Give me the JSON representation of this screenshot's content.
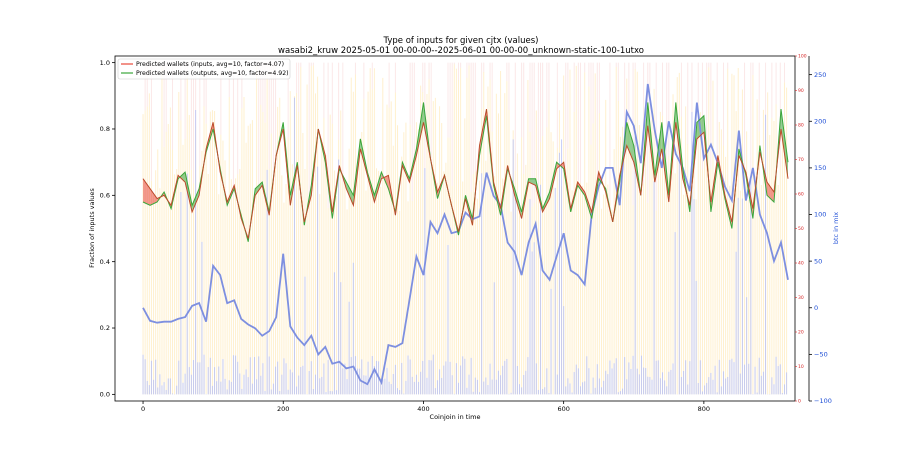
{
  "chart_data": {
    "type": "line",
    "title": "Type of inputs for given cjtx (values)",
    "subtitle": "wasabi2_kruw 2025-05-01 00-00-00--2025-06-01 00-00-00_unknown-static-100-1utxo",
    "xlabel": "Coinjoin in time",
    "ylabel": "Fraction of inputs values",
    "y2label": "btc in mix",
    "xlim": [
      -40,
      930
    ],
    "ylim": [
      -0.02,
      1.02
    ],
    "y_red_lim": [
      0,
      100
    ],
    "y2lim": [
      -100,
      270
    ],
    "x_ticks": [
      0,
      200,
      400,
      600,
      800
    ],
    "x_tick_labels": [
      "0",
      "200",
      "400",
      "600",
      "800"
    ],
    "y_ticks": [
      0.0,
      0.2,
      0.4,
      0.6,
      0.8,
      1.0
    ],
    "y_tick_labels": [
      "0.0",
      "0.2",
      "0.4",
      "0.6",
      "0.8",
      "1.0"
    ],
    "y_red_ticks": [
      0,
      10,
      20,
      30,
      40,
      50,
      60,
      70,
      80,
      90,
      100
    ],
    "y_red_tick_labels": [
      "0",
      "10",
      "20",
      "30",
      "40",
      "50",
      "60",
      "70",
      "80",
      "90",
      "100"
    ],
    "y2_ticks": [
      -100,
      -50,
      0,
      50,
      100,
      150,
      200,
      250
    ],
    "y2_tick_labels": [
      "−100",
      "−50",
      "0",
      "50",
      "100",
      "150",
      "200",
      "250"
    ],
    "legend_placement": "top-left",
    "grid": false,
    "colors": {
      "inputs": "#e8483a",
      "outputs": "#3aa63a",
      "btc": "#7d8fe0",
      "bars_orange": "#ffe3a6",
      "bars_pink": "#f7d2d2",
      "bars_blue": "#b8c0f5"
    },
    "series": [
      {
        "name": "Predicted wallets (inputs, avg=10, factor=4.07)",
        "axis": "fraction",
        "x": [
          0,
          10,
          20,
          30,
          40,
          50,
          60,
          70,
          80,
          90,
          100,
          110,
          120,
          130,
          140,
          150,
          160,
          170,
          180,
          190,
          200,
          210,
          220,
          230,
          240,
          250,
          260,
          270,
          280,
          290,
          300,
          310,
          320,
          330,
          340,
          350,
          360,
          370,
          380,
          390,
          400,
          410,
          420,
          430,
          440,
          450,
          460,
          470,
          480,
          490,
          500,
          510,
          520,
          530,
          540,
          550,
          560,
          570,
          580,
          590,
          600,
          610,
          620,
          630,
          640,
          650,
          660,
          670,
          680,
          690,
          700,
          710,
          720,
          730,
          740,
          750,
          760,
          770,
          780,
          790,
          800,
          810,
          820,
          830,
          840,
          850,
          860,
          870,
          880,
          890,
          900,
          910,
          920
        ],
        "values": [
          0.65,
          0.62,
          0.59,
          0.6,
          0.57,
          0.66,
          0.64,
          0.55,
          0.6,
          0.74,
          0.82,
          0.67,
          0.58,
          0.63,
          0.53,
          0.47,
          0.6,
          0.63,
          0.54,
          0.72,
          0.8,
          0.57,
          0.69,
          0.52,
          0.6,
          0.8,
          0.72,
          0.55,
          0.69,
          0.62,
          0.57,
          0.74,
          0.66,
          0.58,
          0.65,
          0.66,
          0.54,
          0.69,
          0.64,
          0.72,
          0.82,
          0.71,
          0.61,
          0.66,
          0.57,
          0.49,
          0.59,
          0.51,
          0.75,
          0.86,
          0.64,
          0.56,
          0.69,
          0.6,
          0.53,
          0.64,
          0.63,
          0.55,
          0.59,
          0.68,
          0.7,
          0.56,
          0.64,
          0.61,
          0.55,
          0.67,
          0.61,
          0.52,
          0.66,
          0.75,
          0.7,
          0.6,
          0.81,
          0.64,
          0.74,
          0.58,
          0.82,
          0.65,
          0.57,
          0.77,
          0.79,
          0.58,
          0.72,
          0.6,
          0.52,
          0.72,
          0.67,
          0.56,
          0.73,
          0.64,
          0.61,
          0.8,
          0.65
        ]
      },
      {
        "name": "Predicted wallets (outputs, avg=10, factor=4.92)",
        "axis": "fraction",
        "x": [
          0,
          10,
          20,
          30,
          40,
          50,
          60,
          70,
          80,
          90,
          100,
          110,
          120,
          130,
          140,
          150,
          160,
          170,
          180,
          190,
          200,
          210,
          220,
          230,
          240,
          250,
          260,
          270,
          280,
          290,
          300,
          310,
          320,
          330,
          340,
          350,
          360,
          370,
          380,
          390,
          400,
          410,
          420,
          430,
          440,
          450,
          460,
          470,
          480,
          490,
          500,
          510,
          520,
          530,
          540,
          550,
          560,
          570,
          580,
          590,
          600,
          610,
          620,
          630,
          640,
          650,
          660,
          670,
          680,
          690,
          700,
          710,
          720,
          730,
          740,
          750,
          760,
          770,
          780,
          790,
          800,
          810,
          820,
          830,
          840,
          850,
          860,
          870,
          880,
          890,
          900,
          910,
          920
        ],
        "values": [
          0.58,
          0.57,
          0.58,
          0.61,
          0.56,
          0.65,
          0.67,
          0.57,
          0.62,
          0.73,
          0.8,
          0.68,
          0.57,
          0.62,
          0.54,
          0.46,
          0.62,
          0.64,
          0.55,
          0.72,
          0.82,
          0.6,
          0.7,
          0.51,
          0.63,
          0.8,
          0.7,
          0.53,
          0.68,
          0.64,
          0.6,
          0.77,
          0.67,
          0.6,
          0.67,
          0.62,
          0.55,
          0.7,
          0.65,
          0.74,
          0.88,
          0.71,
          0.59,
          0.66,
          0.57,
          0.48,
          0.6,
          0.53,
          0.72,
          0.84,
          0.63,
          0.54,
          0.68,
          0.62,
          0.55,
          0.65,
          0.65,
          0.56,
          0.61,
          0.7,
          0.68,
          0.55,
          0.63,
          0.6,
          0.53,
          0.65,
          0.62,
          0.52,
          0.64,
          0.82,
          0.75,
          0.6,
          0.88,
          0.66,
          0.82,
          0.6,
          0.88,
          0.68,
          0.55,
          0.82,
          0.84,
          0.55,
          0.7,
          0.59,
          0.5,
          0.74,
          0.66,
          0.53,
          0.75,
          0.6,
          0.58,
          0.86,
          0.7
        ]
      },
      {
        "name": "btc in mix",
        "axis": "btc",
        "x": [
          0,
          10,
          20,
          30,
          40,
          50,
          60,
          70,
          80,
          90,
          100,
          110,
          120,
          130,
          140,
          150,
          160,
          170,
          180,
          190,
          200,
          210,
          220,
          230,
          240,
          250,
          260,
          270,
          280,
          290,
          300,
          310,
          320,
          330,
          340,
          350,
          360,
          370,
          380,
          390,
          400,
          410,
          420,
          430,
          440,
          450,
          460,
          470,
          480,
          490,
          500,
          510,
          520,
          530,
          540,
          550,
          560,
          570,
          580,
          590,
          600,
          610,
          620,
          630,
          640,
          650,
          660,
          670,
          680,
          690,
          700,
          710,
          720,
          730,
          740,
          750,
          760,
          770,
          780,
          790,
          800,
          810,
          820,
          830,
          840,
          850,
          860,
          870,
          880,
          890,
          900,
          910,
          920
        ],
        "values": [
          0,
          -14,
          -16,
          -15,
          -15,
          -12,
          -10,
          2,
          5,
          -15,
          45,
          35,
          5,
          8,
          -12,
          -18,
          -22,
          -30,
          -25,
          -10,
          58,
          -20,
          -32,
          -40,
          -30,
          -50,
          -42,
          -60,
          -58,
          -65,
          -63,
          -78,
          -82,
          -66,
          -80,
          -40,
          -42,
          -38,
          8,
          55,
          35,
          92,
          80,
          100,
          80,
          82,
          102,
          95,
          98,
          145,
          120,
          110,
          70,
          60,
          35,
          70,
          90,
          40,
          30,
          55,
          80,
          40,
          35,
          25,
          100,
          130,
          150,
          150,
          110,
          210,
          195,
          155,
          240,
          190,
          150,
          200,
          165,
          150,
          125,
          220,
          160,
          175,
          155,
          130,
          115,
          190,
          115,
          150,
          100,
          80,
          50,
          70,
          30
        ]
      }
    ]
  }
}
